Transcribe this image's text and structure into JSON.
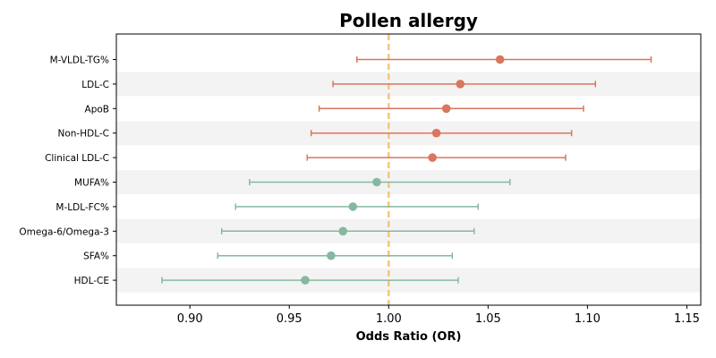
{
  "chart_data": {
    "type": "forest",
    "title": "Pollen allergy",
    "xlabel": "Odds Ratio (OR)",
    "xlim": [
      0.863,
      1.157
    ],
    "xticks": [
      "0.90",
      "0.95",
      "1.00",
      "1.05",
      "1.10",
      "1.15"
    ],
    "reference_line": 1.0,
    "reference_color": "#f4c77a",
    "grid": false,
    "row_band_color": "#f3f3f3",
    "series_colors": {
      "positive": "#d9765f",
      "negative": "#86b8a0"
    },
    "rows": [
      {
        "label": "M-VLDL-TG%",
        "or": 1.056,
        "lo": 0.984,
        "hi": 1.132
      },
      {
        "label": "LDL-C",
        "or": 1.036,
        "lo": 0.972,
        "hi": 1.104
      },
      {
        "label": "ApoB",
        "or": 1.029,
        "lo": 0.965,
        "hi": 1.098
      },
      {
        "label": "Non-HDL-C",
        "or": 1.024,
        "lo": 0.961,
        "hi": 1.092
      },
      {
        "label": "Clinical LDL-C",
        "or": 1.022,
        "lo": 0.959,
        "hi": 1.089
      },
      {
        "label": "MUFA%",
        "or": 0.994,
        "lo": 0.93,
        "hi": 1.061
      },
      {
        "label": "M-LDL-FC%",
        "or": 0.982,
        "lo": 0.923,
        "hi": 1.045
      },
      {
        "label": "Omega-6/Omega-3",
        "or": 0.977,
        "lo": 0.916,
        "hi": 1.043
      },
      {
        "label": "SFA%",
        "or": 0.971,
        "lo": 0.914,
        "hi": 1.032
      },
      {
        "label": "HDL-CE",
        "or": 0.958,
        "lo": 0.886,
        "hi": 1.035
      }
    ]
  }
}
